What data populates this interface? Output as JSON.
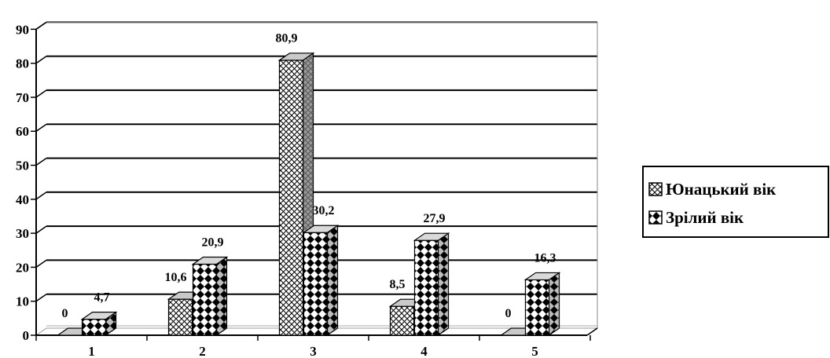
{
  "chart_data": {
    "type": "bar",
    "categories": [
      "1",
      "2",
      "3",
      "4",
      "5"
    ],
    "series": [
      {
        "name": "Юнацький вік",
        "values": [
          0,
          10.6,
          80.9,
          8.5,
          0
        ],
        "value_labels": [
          "0",
          "10,6",
          "80,9",
          "8,5",
          "0"
        ],
        "pattern": "crosshatch",
        "color": "#ffffff"
      },
      {
        "name": "Зрілий вік",
        "values": [
          4.7,
          20.9,
          30.2,
          27.9,
          16.3
        ],
        "value_labels": [
          "4,7",
          "20,9",
          "30,2",
          "27,9",
          "16,3"
        ],
        "pattern": "diamond-checker",
        "color": "#000000"
      }
    ],
    "y_ticks": [
      "0",
      "10",
      "20",
      "30",
      "40",
      "50",
      "60",
      "70",
      "80",
      "90"
    ],
    "ylim": [
      0,
      90
    ],
    "grid": true,
    "legend_position": "right",
    "three_d": true
  }
}
